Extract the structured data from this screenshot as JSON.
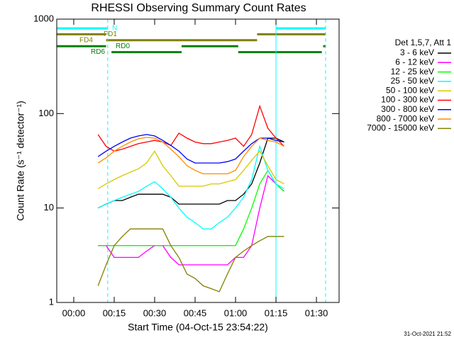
{
  "chart_data": {
    "type": "line",
    "title": "RHESSI Observing Summary Count Rates",
    "xlabel": "Start Time (04-Oct-15 23:54:22)",
    "ylabel": "Count Rate (s⁻¹ detector⁻¹)",
    "footer": "31-Oct-2021 21:52",
    "legend_title": "Det 1,5,7, Att 1",
    "legend": "right",
    "ylog": true,
    "xlim": [
      -6.3,
      98.4
    ],
    "ylim": [
      1,
      1000
    ],
    "xticks": [
      {
        "value": 0,
        "label": "00:00"
      },
      {
        "value": 15,
        "label": "00:15"
      },
      {
        "value": 30,
        "label": "00:30"
      },
      {
        "value": 45,
        "label": "00:45"
      },
      {
        "value": 60,
        "label": "01:00"
      },
      {
        "value": 75,
        "label": "01:15"
      },
      {
        "value": 90,
        "label": "01:30"
      }
    ],
    "yticks": [
      1,
      10,
      100,
      1000
    ],
    "x": [
      9,
      12,
      15,
      18,
      21,
      24,
      27,
      30,
      33,
      36,
      39,
      42,
      45,
      48,
      51,
      54,
      57,
      60,
      63,
      66,
      69,
      72,
      75,
      78
    ],
    "series": [
      {
        "name": "3 - 6 keV",
        "color": "#000000",
        "values": [
          10,
          11,
          12,
          12,
          13,
          14,
          14,
          14,
          14,
          13,
          11,
          11,
          11,
          11,
          11,
          11,
          12,
          12,
          14,
          18,
          30,
          55,
          55,
          50
        ]
      },
      {
        "name": "6 - 12 keV",
        "color": "#ff00ff",
        "values": [
          4,
          4,
          3,
          3,
          3,
          3,
          3.5,
          4,
          4,
          3,
          2.5,
          2.5,
          2.5,
          2.5,
          2.5,
          2.5,
          2.5,
          3,
          3,
          4,
          10,
          22,
          18,
          15
        ]
      },
      {
        "name": "12 - 25 keV",
        "color": "#00ff00",
        "values": [
          4,
          4,
          4,
          4,
          4,
          4,
          4,
          4,
          4,
          4,
          4,
          4,
          4,
          4,
          4,
          4,
          4,
          4,
          6,
          10,
          18,
          25,
          18,
          15
        ]
      },
      {
        "name": "25 - 50 keV",
        "color": "#00ffff",
        "values": [
          10,
          11,
          12,
          13,
          14,
          15,
          17,
          19,
          16,
          13,
          10,
          8,
          7,
          6,
          6,
          7,
          8,
          10,
          13,
          20,
          45,
          25,
          18,
          16
        ]
      },
      {
        "name": "50 - 100 keV",
        "color": "#d8c800",
        "values": [
          16,
          18,
          20,
          22,
          24,
          26,
          30,
          40,
          28,
          22,
          17,
          17,
          17,
          17,
          18,
          18,
          19,
          20,
          25,
          32,
          40,
          28,
          20,
          18
        ]
      },
      {
        "name": "100 - 300 keV",
        "color": "#ff0000",
        "values": [
          60,
          45,
          40,
          42,
          45,
          48,
          50,
          52,
          50,
          46,
          62,
          55,
          50,
          48,
          48,
          50,
          52,
          55,
          45,
          60,
          120,
          70,
          55,
          45
        ]
      },
      {
        "name": "300 - 800 keV",
        "color": "#0000ff",
        "values": [
          35,
          40,
          45,
          50,
          55,
          58,
          60,
          58,
          52,
          46,
          40,
          33,
          30,
          30,
          30,
          30,
          31,
          33,
          40,
          48,
          55,
          55,
          52,
          50
        ]
      },
      {
        "name": "800 - 7000 keV",
        "color": "#ff8c00",
        "values": [
          30,
          34,
          40,
          45,
          50,
          54,
          56,
          55,
          50,
          42,
          35,
          28,
          25,
          23,
          23,
          23,
          23,
          25,
          35,
          45,
          55,
          52,
          50,
          45
        ]
      },
      {
        "name": "7000 - 15000 keV",
        "color": "#808000",
        "values": [
          1.5,
          2.5,
          4,
          5,
          6,
          6,
          6,
          6,
          6,
          4,
          3,
          2,
          1.8,
          1.5,
          1.4,
          1.3,
          2,
          3,
          3.5,
          4,
          4.5,
          5,
          5,
          5
        ]
      }
    ],
    "flags": [
      {
        "name": "N",
        "color": "#00ffff",
        "segments": [
          [
            -6.3,
            12.6
          ],
          [
            75,
            93.4
          ]
        ]
      },
      {
        "name": "FD1",
        "color": "#808000",
        "segments": [
          [
            -6.3,
            12
          ],
          [
            68,
            93.4
          ]
        ]
      },
      {
        "name": "FD4",
        "color": "#808000",
        "segments": [
          [
            12,
            68
          ]
        ]
      },
      {
        "name": "RD0",
        "color": "#008000",
        "segments": [
          [
            -6.3,
            12
          ],
          [
            40,
            61
          ],
          [
            92.5,
            93.4
          ]
        ]
      },
      {
        "name": "RD6",
        "color": "#008000",
        "segments": [
          [
            14,
            40
          ],
          [
            61,
            92
          ]
        ]
      }
    ],
    "vlines": [
      {
        "x": 12.6,
        "color": "#00ffff",
        "dashed": true
      },
      {
        "x": 75,
        "color": "#00ffff",
        "dashed": false
      },
      {
        "x": 93.4,
        "color": "#00ffff",
        "dashed": true
      }
    ]
  }
}
